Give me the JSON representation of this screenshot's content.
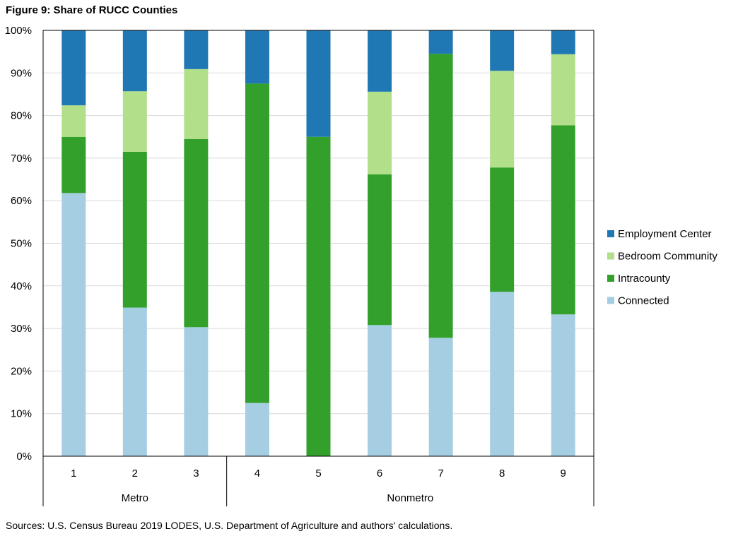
{
  "figure_title": "Figure 9: Share of RUCC Counties",
  "source_note": "Sources: U.S. Census Bureau 2019 LODES,  U.S. Department of Agriculture and authors' calculations.",
  "chart_data": {
    "type": "bar",
    "stacked": true,
    "title": "Figure 9: Share of RUCC Counties",
    "xlabel": "",
    "ylabel": "",
    "ylim": [
      0,
      100
    ],
    "y_tick_values": [
      0,
      10,
      20,
      30,
      40,
      50,
      60,
      70,
      80,
      90,
      100
    ],
    "y_tick_labels": [
      "0%",
      "10%",
      "20%",
      "30%",
      "40%",
      "50%",
      "60%",
      "70%",
      "80%",
      "90%",
      "100%"
    ],
    "categories": [
      "1",
      "2",
      "3",
      "4",
      "5",
      "6",
      "7",
      "8",
      "9"
    ],
    "groups": [
      {
        "label": "Metro",
        "categories": [
          "1",
          "2",
          "3"
        ]
      },
      {
        "label": "Nonmetro",
        "categories": [
          "4",
          "5",
          "6",
          "7",
          "8",
          "9"
        ]
      }
    ],
    "grid": true,
    "legend_position": "right",
    "series": [
      {
        "name": "Connected",
        "color": "#a6cee3",
        "values": [
          61.8,
          34.9,
          30.3,
          12.5,
          0.0,
          30.8,
          27.8,
          38.6,
          33.3
        ]
      },
      {
        "name": "Intracounty",
        "color": "#33a02c",
        "values": [
          13.2,
          36.6,
          44.2,
          75.0,
          75.0,
          35.4,
          66.7,
          29.2,
          44.4
        ]
      },
      {
        "name": "Bedroom Community",
        "color": "#b2df8a",
        "values": [
          7.4,
          14.2,
          16.4,
          0.0,
          0.0,
          19.4,
          0.0,
          22.7,
          16.7
        ]
      },
      {
        "name": "Employment Center",
        "color": "#1f78b4",
        "values": [
          17.6,
          14.3,
          9.1,
          12.5,
          25.0,
          14.4,
          5.5,
          9.5,
          5.6
        ]
      }
    ],
    "legend_order": [
      "Employment Center",
      "Bedroom Community",
      "Intracounty",
      "Connected"
    ]
  }
}
